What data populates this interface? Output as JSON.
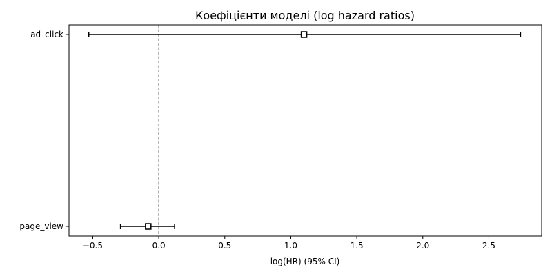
{
  "chart_data": {
    "type": "forest",
    "title": "Коефіцієнти моделі (log hazard ratios)",
    "xlabel": "log(HR) (95% CI)",
    "ylabel": "",
    "xlim": [
      -0.68,
      2.9
    ],
    "xticks": [
      -0.5,
      0.0,
      0.5,
      1.0,
      1.5,
      2.0,
      2.5
    ],
    "xtick_labels": [
      "−0.5",
      "0.0",
      "0.5",
      "1.0",
      "1.5",
      "2.0",
      "2.5"
    ],
    "reference_line": 0.0,
    "grid": false,
    "points": [
      {
        "label": "ad_click",
        "coef": 1.1,
        "ci_low": -0.53,
        "ci_high": 2.74
      },
      {
        "label": "page_view",
        "coef": -0.08,
        "ci_low": -0.29,
        "ci_high": 0.12
      }
    ]
  }
}
